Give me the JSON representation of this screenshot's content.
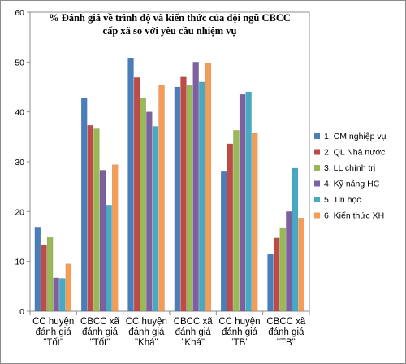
{
  "chart_data": {
    "type": "bar",
    "title_lines": [
      "% Đánh giá về trình độ và kiến thức của đội ngũ CBCC",
      "cấp xã so với yêu cầu nhiệm vụ"
    ],
    "categories": [
      [
        "CC huyện",
        "đánh giá",
        "\"Tốt\""
      ],
      [
        "CBCC xã",
        "đánh giá",
        "\"Tốt\""
      ],
      [
        "CC huyện",
        "đánh giá",
        "\"Khá\""
      ],
      [
        "CBCC xã",
        "đánh giá",
        "\"Khá\""
      ],
      [
        "CC huyện",
        "đánh giá",
        "\"TB\""
      ],
      [
        "CBCC xã",
        "đánh giá",
        "\"TB\""
      ]
    ],
    "series": [
      {
        "name": "1. CM nghiệp vụ",
        "color": "#4a7ebb",
        "values": [
          16.9,
          42.8,
          50.8,
          45.0,
          28.0,
          11.5
        ]
      },
      {
        "name": "2. QL Nhà nước",
        "color": "#be4b48",
        "values": [
          13.3,
          37.3,
          46.9,
          47.0,
          33.6,
          14.7
        ]
      },
      {
        "name": "3. LL chính trị",
        "color": "#98b954",
        "values": [
          14.8,
          36.6,
          42.8,
          45.3,
          36.3,
          16.8
        ]
      },
      {
        "name": "4. Kỹ năng HC",
        "color": "#7d60a0",
        "values": [
          6.7,
          28.3,
          40.0,
          50.0,
          43.5,
          20.0
        ]
      },
      {
        "name": "5. Tin học",
        "color": "#46aac5",
        "values": [
          6.6,
          21.3,
          37.1,
          46.0,
          44.0,
          28.7
        ]
      },
      {
        "name": "6. Kiến thức XH",
        "color": "#f59d56",
        "values": [
          9.5,
          29.4,
          45.3,
          49.8,
          35.7,
          18.7
        ]
      }
    ],
    "ylim": [
      0,
      60
    ],
    "yticks": [
      "0",
      "10",
      "20",
      "30",
      "40",
      "50",
      "60"
    ],
    "grid": false,
    "legend_position": "right"
  }
}
